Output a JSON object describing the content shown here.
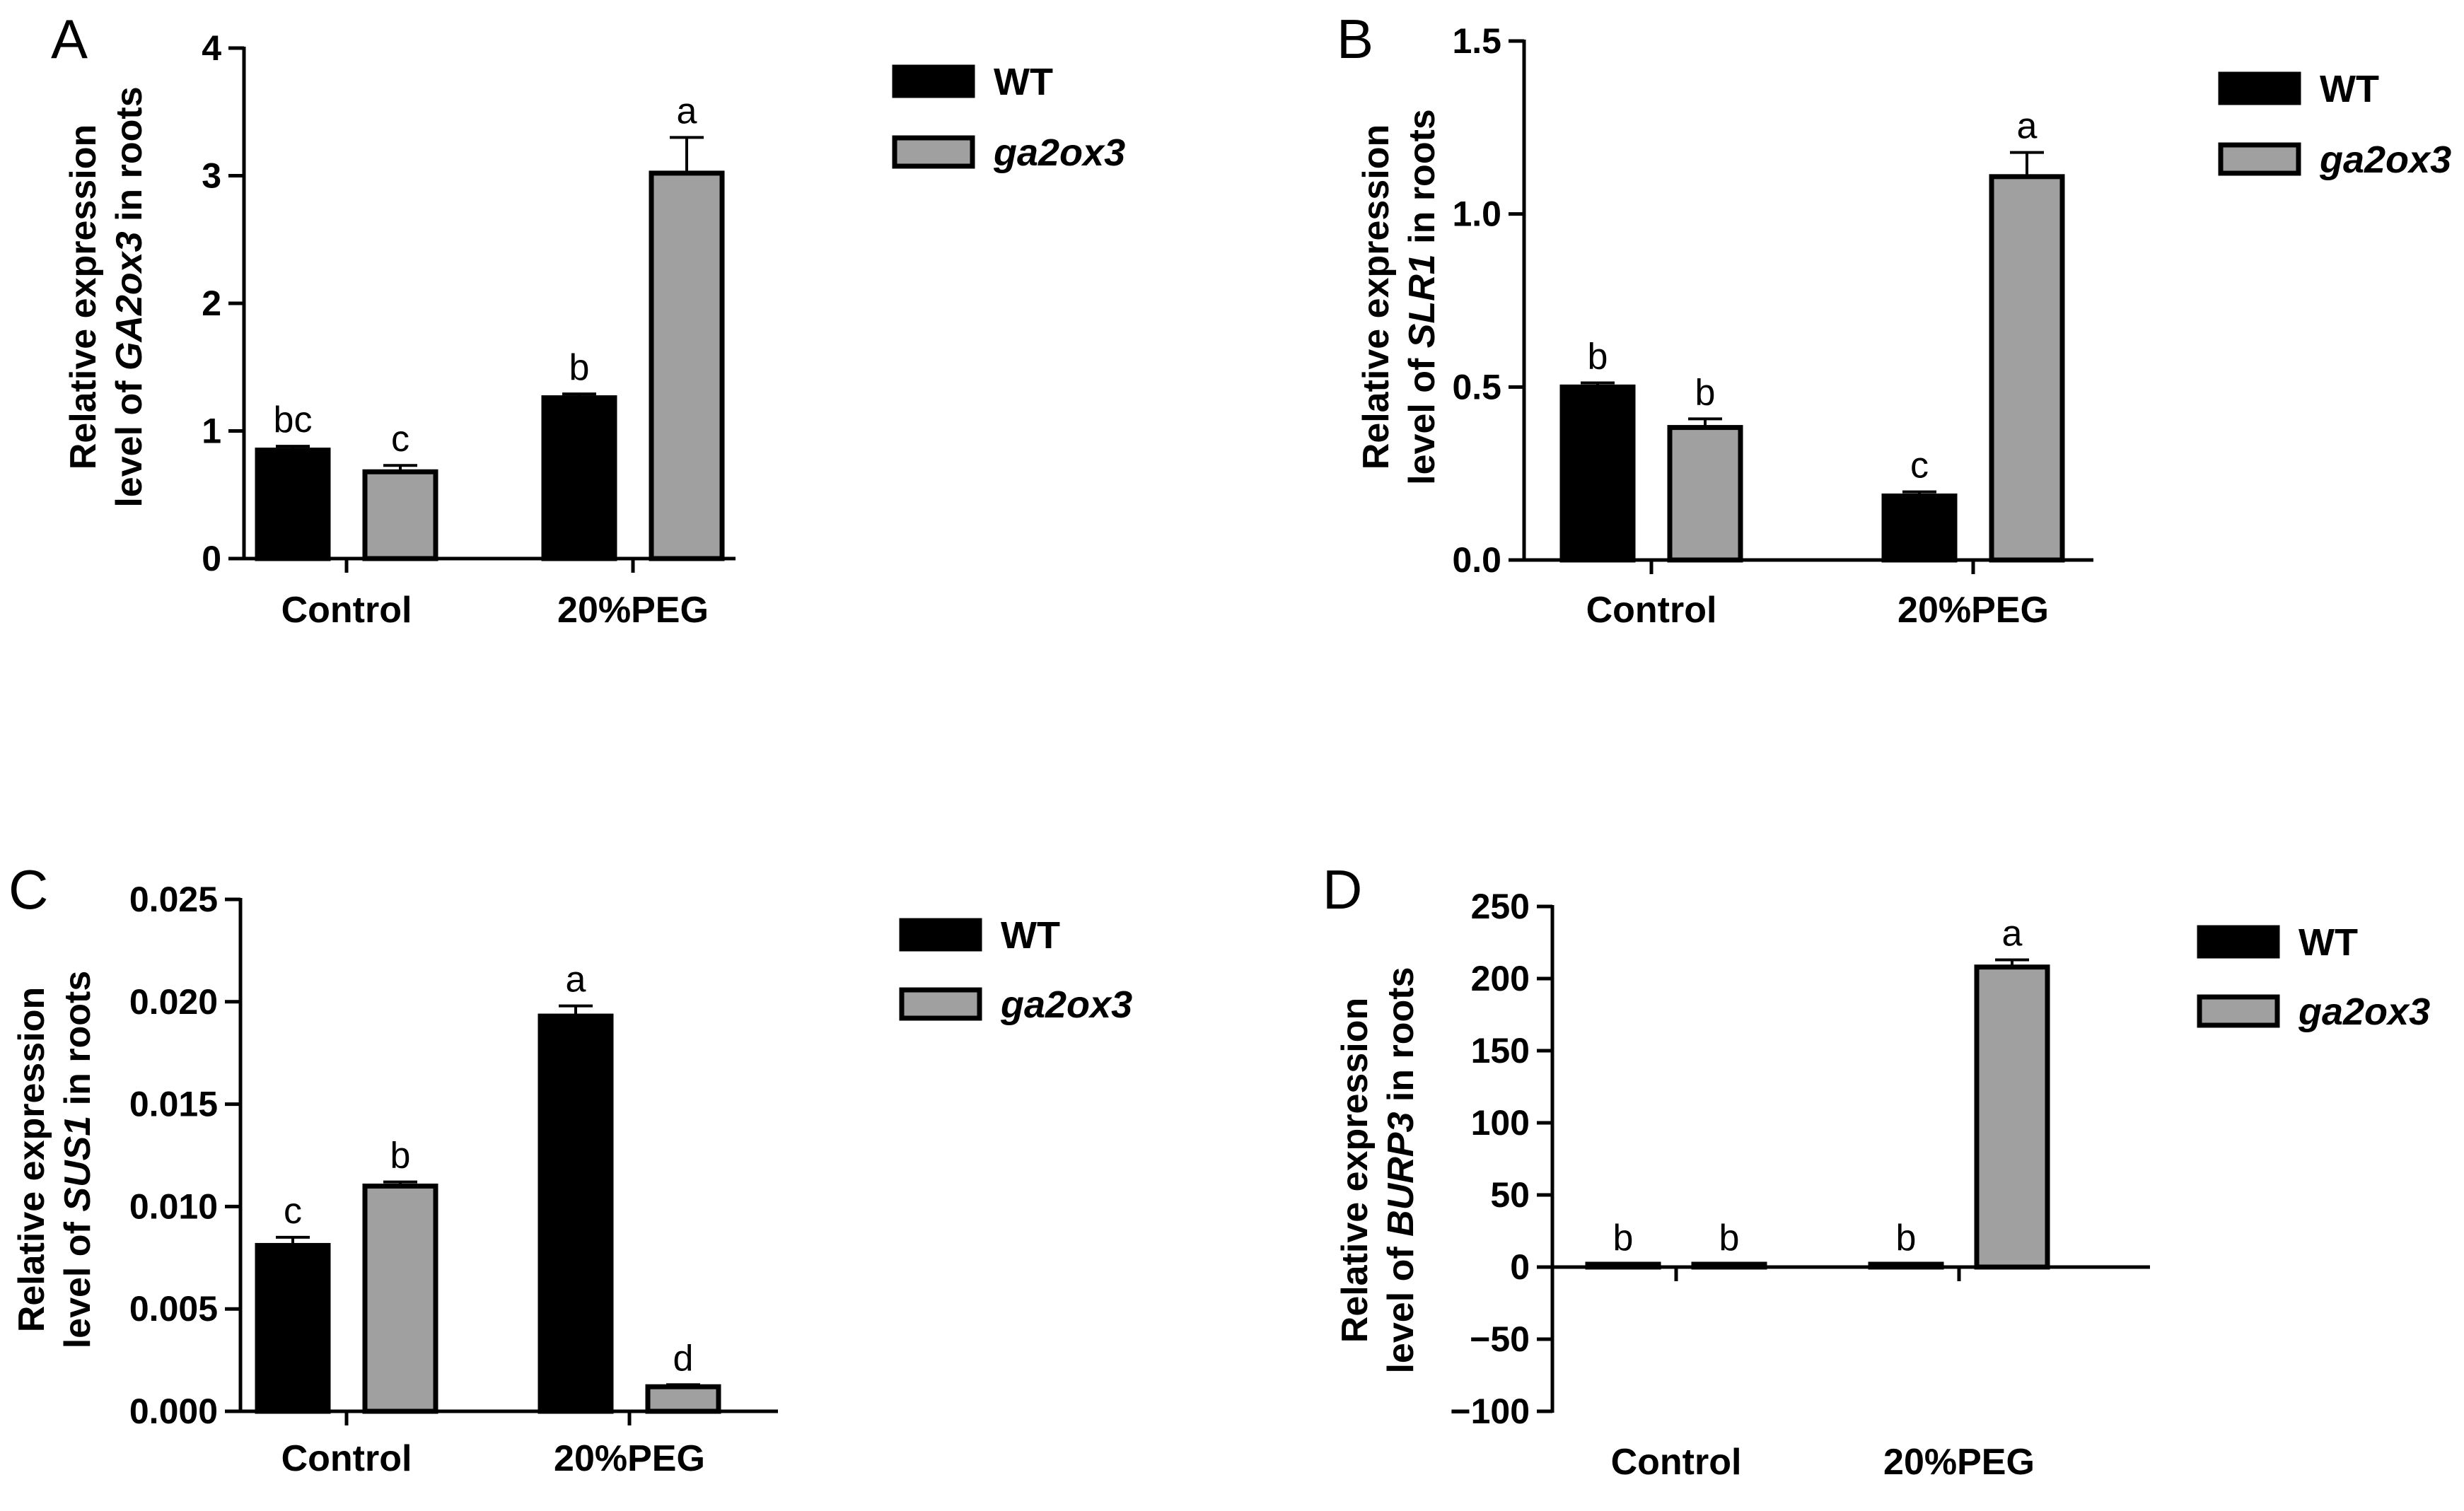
{
  "colors": {
    "WT": "#000000",
    "ga2ox3": "#a0a0a0",
    "axis": "#000000"
  },
  "chart_data": [
    {
      "panel": "A",
      "type": "bar",
      "categories": [
        "Control",
        "20%PEG"
      ],
      "series": [
        {
          "name": "WT",
          "values": [
            0.85,
            1.26
          ],
          "errors": [
            0.03,
            0.03
          ],
          "letters": [
            "bc",
            "b"
          ]
        },
        {
          "name": "ga2ox3",
          "values": [
            0.68,
            3.02
          ],
          "errors": [
            0.05,
            0.28
          ],
          "letters": [
            "c",
            "a"
          ]
        }
      ],
      "ylabel_prefix": "Relative expression",
      "ylabel_line2_pre": "level of ",
      "ylabel_gene": "GA2ox3",
      "ylabel_line2_post": " in roots",
      "ylim": [
        0,
        4
      ],
      "yticks": [
        0,
        1,
        2,
        3,
        4
      ],
      "ytick_labels": [
        "0",
        "1",
        "2",
        "3",
        "4"
      ],
      "legend": [
        "WT",
        "ga2ox3"
      ]
    },
    {
      "panel": "B",
      "type": "bar",
      "categories": [
        "Control",
        "20%PEG"
      ],
      "series": [
        {
          "name": "WT",
          "values": [
            0.5,
            0.185
          ],
          "errors": [
            0.012,
            0.012
          ],
          "letters": [
            "b",
            "c"
          ]
        },
        {
          "name": "ga2ox3",
          "values": [
            0.383,
            1.108
          ],
          "errors": [
            0.025,
            0.07
          ],
          "letters": [
            "b",
            "a"
          ]
        }
      ],
      "ylabel_prefix": "Relative expression",
      "ylabel_line2_pre": "level of ",
      "ylabel_gene": "SLR1",
      "ylabel_line2_post": " in roots",
      "ylim": [
        0,
        1.5
      ],
      "yticks": [
        0,
        0.5,
        1.0,
        1.5
      ],
      "ytick_labels": [
        "0.0",
        "0.5",
        "1.0",
        "1.5"
      ],
      "legend": [
        "WT",
        "ga2ox3"
      ]
    },
    {
      "panel": "C",
      "type": "bar",
      "categories": [
        "Control",
        "20%PEG"
      ],
      "series": [
        {
          "name": "WT",
          "values": [
            0.0081,
            0.0193
          ],
          "errors": [
            0.0004,
            0.0005
          ],
          "letters": [
            "c",
            "a"
          ]
        },
        {
          "name": "ga2ox3",
          "values": [
            0.011,
            0.0012
          ],
          "errors": [
            0.0002,
            0.0001
          ],
          "letters": [
            "b",
            "d"
          ]
        }
      ],
      "ylabel_prefix": "Relative expression",
      "ylabel_line2_pre": "level of ",
      "ylabel_gene": "SUS1",
      "ylabel_line2_post": " in roots",
      "ylim": [
        0,
        0.025
      ],
      "yticks": [
        0,
        0.005,
        0.01,
        0.015,
        0.02,
        0.025
      ],
      "ytick_labels": [
        "0.000",
        "0.005",
        "0.010",
        "0.015",
        "0.020",
        "0.025"
      ],
      "legend": [
        "WT",
        "ga2ox3"
      ]
    },
    {
      "panel": "D",
      "type": "bar",
      "categories": [
        "Control",
        "20%PEG"
      ],
      "series": [
        {
          "name": "WT",
          "values": [
            1,
            1
          ],
          "errors": [
            0,
            0
          ],
          "letters": [
            "b",
            "b"
          ]
        },
        {
          "name": "ga2ox3",
          "values": [
            1,
            208
          ],
          "errors": [
            0,
            5
          ],
          "letters": [
            "b",
            "a"
          ]
        }
      ],
      "ylabel_prefix": "Relative expression",
      "ylabel_line2_pre": "level of ",
      "ylabel_gene": "BURP3",
      "ylabel_line2_post": " in roots",
      "ylim": [
        -100,
        250
      ],
      "yticks": [
        -100,
        -50,
        0,
        50,
        100,
        150,
        200,
        250
      ],
      "ytick_labels": [
        "−100",
        "−50",
        "0",
        "50",
        "100",
        "150",
        "200",
        "250"
      ],
      "legend": [
        "WT",
        "ga2ox3"
      ]
    }
  ]
}
